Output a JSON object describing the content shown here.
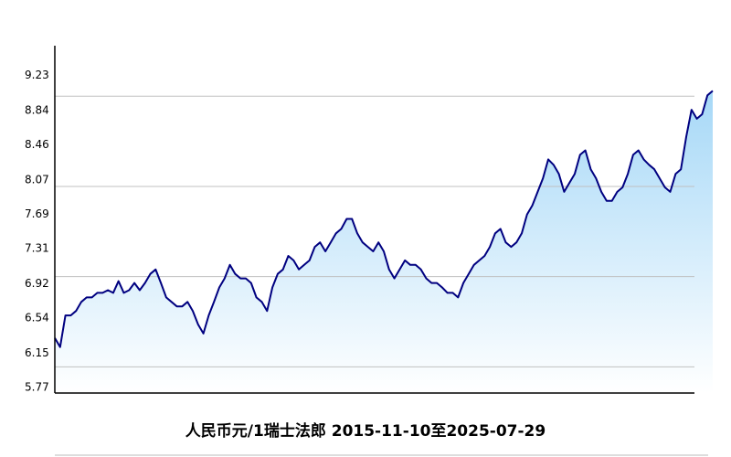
{
  "chart_data": {
    "type": "line",
    "title": "人民币元/1瑞士法郎  2015-11-10至2025-07-29",
    "color": "#000080",
    "area": true,
    "ylim": [
      5.71,
      9.56
    ],
    "yticks": [
      5.77,
      6.15,
      6.54,
      6.92,
      7.31,
      7.69,
      8.07,
      8.46,
      8.84,
      9.23
    ],
    "gridlines": [
      6,
      7,
      8,
      9
    ],
    "values": [
      6.32,
      6.22,
      6.57,
      6.57,
      6.62,
      6.72,
      6.77,
      6.77,
      6.82,
      6.82,
      6.85,
      6.82,
      6.95,
      6.82,
      6.85,
      6.93,
      6.85,
      6.93,
      7.03,
      7.08,
      6.93,
      6.77,
      6.72,
      6.67,
      6.67,
      6.72,
      6.62,
      6.47,
      6.37,
      6.57,
      6.72,
      6.88,
      6.98,
      7.13,
      7.03,
      6.98,
      6.98,
      6.93,
      6.77,
      6.72,
      6.62,
      6.88,
      7.03,
      7.08,
      7.23,
      7.18,
      7.08,
      7.13,
      7.18,
      7.33,
      7.38,
      7.28,
      7.38,
      7.48,
      7.53,
      7.64,
      7.64,
      7.48,
      7.38,
      7.33,
      7.28,
      7.38,
      7.28,
      7.08,
      6.98,
      7.08,
      7.18,
      7.13,
      7.13,
      7.08,
      6.98,
      6.93,
      6.93,
      6.88,
      6.82,
      6.82,
      6.77,
      6.93,
      7.03,
      7.13,
      7.18,
      7.23,
      7.33,
      7.48,
      7.53,
      7.38,
      7.33,
      7.38,
      7.48,
      7.69,
      7.79,
      7.94,
      8.09,
      8.3,
      8.24,
      8.14,
      7.94,
      8.04,
      8.14,
      8.35,
      8.4,
      8.19,
      8.09,
      7.94,
      7.84,
      7.84,
      7.94,
      7.99,
      8.14,
      8.35,
      8.4,
      8.3,
      8.24,
      8.19,
      8.09,
      7.99,
      7.94,
      8.14,
      8.19,
      8.55,
      8.85,
      8.75,
      8.8,
      9.01,
      9.06
    ]
  }
}
